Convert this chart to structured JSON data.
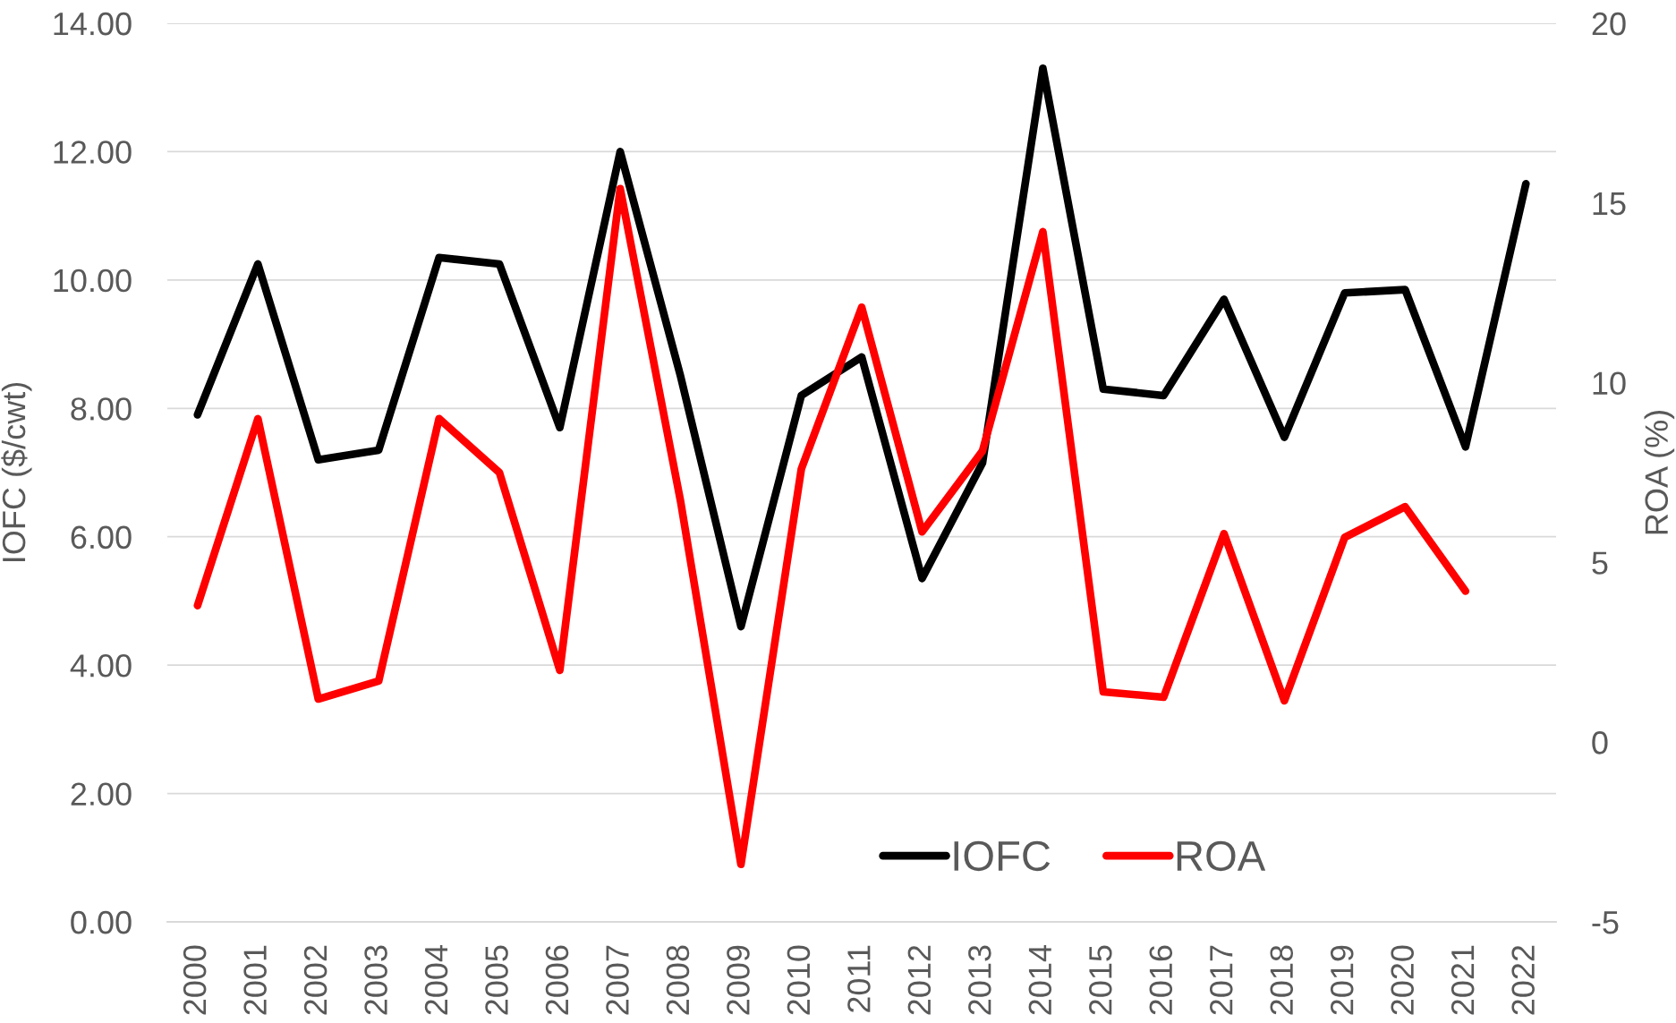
{
  "chart_data": {
    "type": "line",
    "categories": [
      "2000",
      "2001",
      "2002",
      "2003",
      "2004",
      "2005",
      "2006",
      "2007",
      "2008",
      "2009",
      "2010",
      "2011",
      "2012",
      "2013",
      "2014",
      "2015",
      "2016",
      "2017",
      "2018",
      "2019",
      "2020",
      "2021",
      "2022"
    ],
    "ylabel": "IOFC ($/cwt)",
    "y2label": "ROA (%)",
    "series": [
      {
        "name": "IOFC",
        "color": "#000000",
        "values": [
          7.9,
          10.25,
          7.2,
          7.35,
          10.35,
          10.25,
          7.7,
          12.0,
          8.5,
          4.6,
          8.2,
          8.8,
          5.35,
          7.15,
          13.3,
          8.3,
          8.2,
          9.7,
          7.55,
          9.8,
          9.85,
          7.4,
          11.5
        ]
      },
      {
        "name": "ROA",
        "color": "#ff0000",
        "axis": "y2",
        "values": [
          3.8,
          9.0,
          1.2,
          1.7,
          9.0,
          7.5,
          2.0,
          15.4,
          6.7,
          -3.4,
          7.6,
          12.1,
          5.85,
          8.1,
          14.2,
          1.4,
          1.25,
          5.8,
          1.15,
          5.7,
          6.55,
          4.2,
          null
        ]
      }
    ],
    "ylim": [
      0,
      14
    ],
    "yticks": [
      {
        "value": 0,
        "label": "0.00"
      },
      {
        "value": 2,
        "label": "2.00"
      },
      {
        "value": 4,
        "label": "4.00"
      },
      {
        "value": 6,
        "label": "6.00"
      },
      {
        "value": 8,
        "label": "8.00"
      },
      {
        "value": 10,
        "label": "10.00"
      },
      {
        "value": 12,
        "label": "12.00"
      },
      {
        "value": 14,
        "label": "14.00"
      }
    ],
    "y2lim": [
      -5,
      20
    ],
    "y2ticks": [
      -5,
      0,
      5,
      10,
      15,
      20
    ],
    "grid": "y",
    "legend": "bottom",
    "line_style": "solid"
  }
}
